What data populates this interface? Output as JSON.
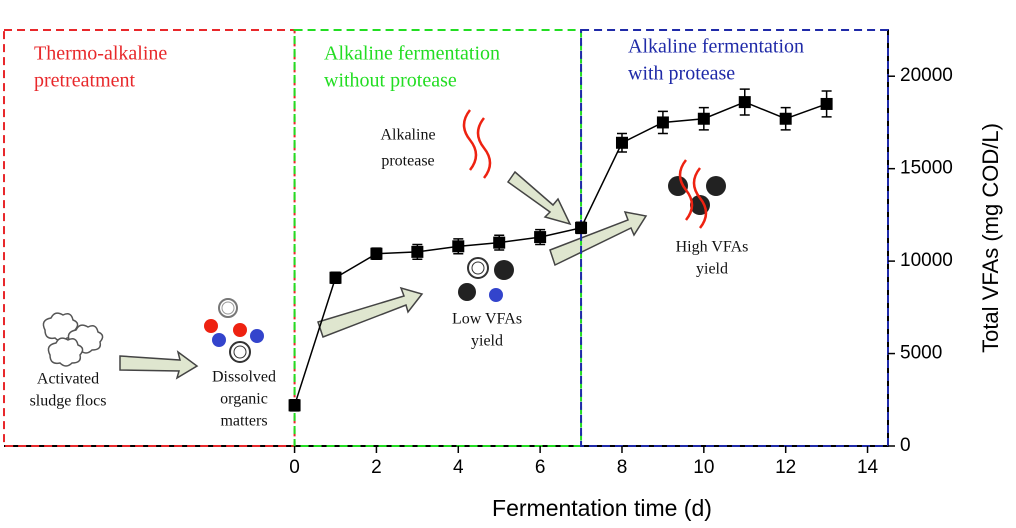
{
  "chart_data": {
    "type": "line",
    "xlabel": "Fermentation time (d)",
    "ylabel": "Total VFAs (mg COD/L)",
    "x": [
      0,
      1,
      2,
      3,
      4,
      5,
      6,
      7,
      8,
      9,
      10,
      11,
      12,
      13
    ],
    "series": [
      {
        "color": "#000000",
        "values": [
          2200,
          9100,
          10400,
          10500,
          10800,
          11000,
          11300,
          11800,
          16400,
          17500,
          17700,
          18600,
          17700,
          18500
        ],
        "errors": [
          300,
          300,
          300,
          400,
          400,
          400,
          400,
          300,
          500,
          600,
          600,
          700,
          600,
          700
        ]
      }
    ],
    "xlim": [
      -7.1,
      14.5
    ],
    "xticks": [
      0,
      2,
      4,
      6,
      8,
      10,
      12,
      14
    ],
    "ylim": [
      0,
      22500
    ],
    "yticks": [
      0,
      5000,
      10000,
      15000,
      20000
    ],
    "y_axis_side": "right",
    "regions": [
      {
        "lines": [
          "Thermo-alkaline",
          "pretreatment"
        ],
        "color": "#e8282b"
      },
      {
        "lines": [
          "Alkaline fermentation",
          "without protease"
        ],
        "color": "#22dd22"
      },
      {
        "lines": [
          "Alkaline fermentation",
          "with protease"
        ],
        "color": "#1f2aa8"
      }
    ],
    "notes": [
      [
        "Alkaline",
        "protease"
      ],
      [
        "Activated",
        "sludge flocs"
      ],
      [
        "Dissolved",
        "organic",
        "matters"
      ],
      [
        "Low VFAs",
        "yield"
      ],
      [
        "High VFAs",
        "yield"
      ]
    ]
  }
}
